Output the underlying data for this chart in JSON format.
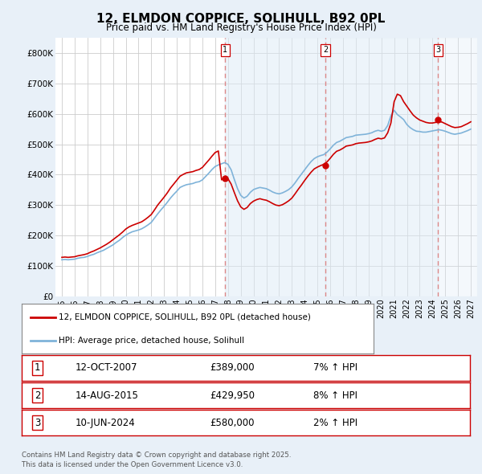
{
  "title": "12, ELMDON COPPICE, SOLIHULL, B92 0PL",
  "subtitle": "Price paid vs. HM Land Registry's House Price Index (HPI)",
  "background_color": "#e8f0f8",
  "plot_bg_color": "#ffffff",
  "red_color": "#cc0000",
  "blue_color": "#7fb3d9",
  "dashed_color": "#dd8888",
  "shade_color": "#ddeaf6",
  "ylim": [
    0,
    850000
  ],
  "yticks": [
    0,
    100000,
    200000,
    300000,
    400000,
    500000,
    600000,
    700000,
    800000
  ],
  "ytick_labels": [
    "£0",
    "£100K",
    "£200K",
    "£300K",
    "£400K",
    "£500K",
    "£600K",
    "£700K",
    "£800K"
  ],
  "xlim_start": 1994.5,
  "xlim_end": 2027.5,
  "xticks": [
    1995,
    1996,
    1997,
    1998,
    1999,
    2000,
    2001,
    2002,
    2003,
    2004,
    2005,
    2006,
    2007,
    2008,
    2009,
    2010,
    2011,
    2012,
    2013,
    2014,
    2015,
    2016,
    2017,
    2018,
    2019,
    2020,
    2021,
    2022,
    2023,
    2024,
    2025,
    2026,
    2027
  ],
  "sale_dates": [
    2007.79,
    2015.62,
    2024.44
  ],
  "sale_prices": [
    389000,
    429950,
    580000
  ],
  "sale_labels": [
    "1",
    "2",
    "3"
  ],
  "sale_date_strs": [
    "12-OCT-2007",
    "14-AUG-2015",
    "10-JUN-2024"
  ],
  "sale_price_strs": [
    "£389,000",
    "£429,950",
    "£580,000"
  ],
  "sale_hpi_strs": [
    "7% ↑ HPI",
    "8% ↑ HPI",
    "2% ↑ HPI"
  ],
  "legend_red_label": "12, ELMDON COPPICE, SOLIHULL, B92 0PL (detached house)",
  "legend_blue_label": "HPI: Average price, detached house, Solihull",
  "footnote": "Contains HM Land Registry data © Crown copyright and database right 2025.\nThis data is licensed under the Open Government Licence v3.0.",
  "hpi_years": [
    1995.0,
    1995.25,
    1995.5,
    1995.75,
    1996.0,
    1996.25,
    1996.5,
    1996.75,
    1997.0,
    1997.25,
    1997.5,
    1997.75,
    1998.0,
    1998.25,
    1998.5,
    1998.75,
    1999.0,
    1999.25,
    1999.5,
    1999.75,
    2000.0,
    2000.25,
    2000.5,
    2000.75,
    2001.0,
    2001.25,
    2001.5,
    2001.75,
    2002.0,
    2002.25,
    2002.5,
    2002.75,
    2003.0,
    2003.25,
    2003.5,
    2003.75,
    2004.0,
    2004.25,
    2004.5,
    2004.75,
    2005.0,
    2005.25,
    2005.5,
    2005.75,
    2006.0,
    2006.25,
    2006.5,
    2006.75,
    2007.0,
    2007.25,
    2007.5,
    2007.75,
    2008.0,
    2008.25,
    2008.5,
    2008.75,
    2009.0,
    2009.25,
    2009.5,
    2009.75,
    2010.0,
    2010.25,
    2010.5,
    2010.75,
    2011.0,
    2011.25,
    2011.5,
    2011.75,
    2012.0,
    2012.25,
    2012.5,
    2012.75,
    2013.0,
    2013.25,
    2013.5,
    2013.75,
    2014.0,
    2014.25,
    2014.5,
    2014.75,
    2015.0,
    2015.25,
    2015.5,
    2015.75,
    2016.0,
    2016.25,
    2016.5,
    2016.75,
    2017.0,
    2017.25,
    2017.5,
    2017.75,
    2018.0,
    2018.25,
    2018.5,
    2018.75,
    2019.0,
    2019.25,
    2019.5,
    2019.75,
    2020.0,
    2020.25,
    2020.5,
    2020.75,
    2021.0,
    2021.25,
    2021.5,
    2021.75,
    2022.0,
    2022.25,
    2022.5,
    2022.75,
    2023.0,
    2023.25,
    2023.5,
    2023.75,
    2024.0,
    2024.25,
    2024.5,
    2024.75,
    2025.0,
    2025.25,
    2025.5,
    2025.75,
    2026.0,
    2026.25,
    2026.5,
    2026.75,
    2027.0
  ],
  "hpi_values": [
    120000,
    121000,
    120000,
    121000,
    122000,
    125000,
    127000,
    128000,
    131000,
    135000,
    138000,
    143000,
    147000,
    151000,
    157000,
    163000,
    169000,
    177000,
    184000,
    193000,
    201000,
    207000,
    212000,
    215000,
    218000,
    222000,
    228000,
    235000,
    243000,
    257000,
    271000,
    284000,
    296000,
    309000,
    323000,
    335000,
    346000,
    358000,
    363000,
    367000,
    369000,
    371000,
    375000,
    377000,
    383000,
    394000,
    405000,
    417000,
    427000,
    432000,
    436000,
    440000,
    434000,
    416000,
    384000,
    354000,
    332000,
    323000,
    329000,
    342000,
    351000,
    355000,
    358000,
    356000,
    354000,
    349000,
    343000,
    339000,
    337000,
    340000,
    345000,
    351000,
    360000,
    373000,
    388000,
    402000,
    416000,
    430000,
    443000,
    453000,
    459000,
    463000,
    466000,
    474000,
    485000,
    497000,
    506000,
    510000,
    516000,
    522000,
    524000,
    526000,
    530000,
    531000,
    532000,
    533000,
    535000,
    538000,
    543000,
    546000,
    543000,
    546000,
    562000,
    594000,
    612000,
    598000,
    590000,
    581000,
    565000,
    555000,
    548000,
    543000,
    542000,
    540000,
    540000,
    542000,
    544000,
    546000,
    548000,
    546000,
    543000,
    539000,
    535000,
    533000,
    535000,
    537000,
    541000,
    545000,
    550000
  ],
  "red_years": [
    1995.0,
    1995.25,
    1995.5,
    1995.75,
    1996.0,
    1996.25,
    1996.5,
    1996.75,
    1997.0,
    1997.25,
    1997.5,
    1997.75,
    1998.0,
    1998.25,
    1998.5,
    1998.75,
    1999.0,
    1999.25,
    1999.5,
    1999.75,
    2000.0,
    2000.25,
    2000.5,
    2000.75,
    2001.0,
    2001.25,
    2001.5,
    2001.75,
    2002.0,
    2002.25,
    2002.5,
    2002.75,
    2003.0,
    2003.25,
    2003.5,
    2003.75,
    2004.0,
    2004.25,
    2004.5,
    2004.75,
    2005.0,
    2005.25,
    2005.5,
    2005.75,
    2006.0,
    2006.25,
    2006.5,
    2006.75,
    2007.0,
    2007.25,
    2007.5,
    2007.75,
    2008.0,
    2008.25,
    2008.5,
    2008.75,
    2009.0,
    2009.25,
    2009.5,
    2009.75,
    2010.0,
    2010.25,
    2010.5,
    2010.75,
    2011.0,
    2011.25,
    2011.5,
    2011.75,
    2012.0,
    2012.25,
    2012.5,
    2012.75,
    2013.0,
    2013.25,
    2013.5,
    2013.75,
    2014.0,
    2014.25,
    2014.5,
    2014.75,
    2015.0,
    2015.25,
    2015.5,
    2015.75,
    2016.0,
    2016.25,
    2016.5,
    2016.75,
    2017.0,
    2017.25,
    2017.5,
    2017.75,
    2018.0,
    2018.25,
    2018.5,
    2018.75,
    2019.0,
    2019.25,
    2019.5,
    2019.75,
    2020.0,
    2020.25,
    2020.5,
    2020.75,
    2021.0,
    2021.25,
    2021.5,
    2021.75,
    2022.0,
    2022.25,
    2022.5,
    2022.75,
    2023.0,
    2023.25,
    2023.5,
    2023.75,
    2024.0,
    2024.25,
    2024.5,
    2024.75,
    2025.0,
    2025.25,
    2025.5,
    2025.75,
    2026.0,
    2026.25,
    2026.5,
    2026.75,
    2027.0
  ],
  "red_values": [
    128000,
    129000,
    128000,
    129000,
    130000,
    133000,
    135000,
    137000,
    140000,
    145000,
    149000,
    154000,
    159000,
    165000,
    171000,
    178000,
    186000,
    194000,
    202000,
    211000,
    221000,
    228000,
    233000,
    237000,
    241000,
    245000,
    252000,
    260000,
    269000,
    284000,
    300000,
    313000,
    326000,
    340000,
    356000,
    369000,
    382000,
    395000,
    401000,
    406000,
    408000,
    410000,
    414000,
    417000,
    424000,
    436000,
    448000,
    461000,
    473000,
    478000,
    383000,
    393000,
    387000,
    369000,
    341000,
    314000,
    294000,
    286000,
    292000,
    305000,
    313000,
    318000,
    321000,
    318000,
    316000,
    311000,
    305000,
    300000,
    298000,
    301000,
    307000,
    314000,
    323000,
    337000,
    352000,
    366000,
    381000,
    395000,
    408000,
    419000,
    425000,
    430000,
    434000,
    442000,
    454000,
    467000,
    477000,
    481000,
    487000,
    494000,
    496000,
    498000,
    502000,
    504000,
    505000,
    506000,
    508000,
    511000,
    516000,
    520000,
    518000,
    521000,
    538000,
    570000,
    640000,
    665000,
    660000,
    640000,
    625000,
    610000,
    596000,
    587000,
    580000,
    576000,
    572000,
    570000,
    570000,
    572000,
    575000,
    573000,
    568000,
    563000,
    558000,
    555000,
    556000,
    558000,
    563000,
    568000,
    574000
  ]
}
